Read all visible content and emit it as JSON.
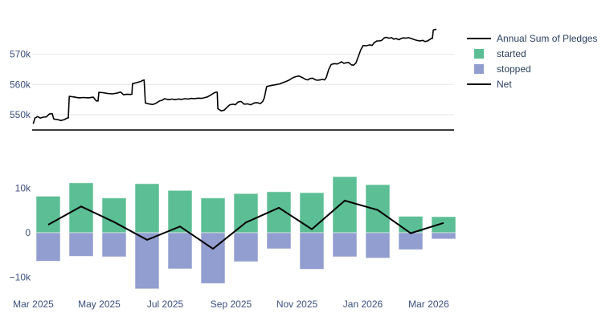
{
  "figure": {
    "background": "#ffffff",
    "grid_color": "#e6e6e6",
    "axisline_color": "#3d3d3d",
    "tick_color": "#3b4f7d",
    "legend_text_color": "#2a3f5f",
    "annual_line_color": "#000000",
    "net_line_color": "#000000",
    "started_color": "#5cbe94",
    "stopped_color": "#929ecf"
  },
  "legend": {
    "items": [
      {
        "label": "Annual Sum of Pledges",
        "symbol": "line",
        "color": "#000000"
      },
      {
        "label": "started",
        "symbol": "square",
        "color": "#5cbe94"
      },
      {
        "label": "stopped",
        "symbol": "square",
        "color": "#929ecf"
      },
      {
        "label": "Net",
        "symbol": "line",
        "color": "#000000"
      }
    ]
  },
  "chart_data": [
    {
      "type": "line",
      "name": "Annual Sum of Pledges",
      "x_unit": "months since Mar 2025 (axis spans Mar 2025 to mid-Mar 2026)",
      "y_unit": "thousands",
      "ylim_k": [
        545,
        579
      ],
      "grid": true,
      "yticks": {
        "labels": [
          "550k",
          "560k",
          "570k"
        ],
        "values_k": [
          550,
          560,
          570
        ]
      },
      "x": [
        0,
        0.05,
        0.13,
        0.21,
        0.3,
        0.4,
        0.48,
        0.57,
        0.62,
        0.74,
        0.84,
        0.94,
        1.03,
        1.06,
        1.09,
        1.23,
        1.38,
        1.52,
        1.67,
        1.82,
        1.91,
        1.96,
        1.99,
        2.11,
        2.26,
        2.4,
        2.55,
        2.65,
        2.74,
        2.84,
        2.94,
        2.99,
        3.01,
        3.13,
        3.26,
        3.33,
        3.36,
        3.4,
        3.5,
        3.62,
        3.72,
        3.82,
        3.91,
        3.98,
        4.11,
        4.21,
        4.3,
        4.4,
        4.5,
        4.6,
        4.7,
        4.79,
        4.89,
        4.99,
        5.09,
        5.18,
        5.28,
        5.38,
        5.48,
        5.55,
        5.58,
        5.6,
        5.7,
        5.79,
        5.89,
        5.96,
        6.06,
        6.13,
        6.21,
        6.3,
        6.4,
        6.5,
        6.6,
        6.7,
        6.79,
        6.89,
        6.96,
        7.01,
        7.08,
        7.18,
        7.28,
        7.38,
        7.48,
        7.57,
        7.67,
        7.77,
        7.87,
        7.96,
        8.06,
        8.16,
        8.26,
        8.33,
        8.4,
        8.48,
        8.55,
        8.62,
        8.7,
        8.77,
        8.84,
        8.89,
        8.96,
        9.04,
        9.13,
        9.23,
        9.3,
        9.35,
        9.43,
        9.5,
        9.57,
        9.65,
        9.72,
        9.79,
        9.87,
        9.94,
        10.01,
        10.11,
        10.21,
        10.28,
        10.35,
        10.43,
        10.5,
        10.57,
        10.65,
        10.72,
        10.79,
        10.87,
        10.94,
        11.01,
        11.09,
        11.16,
        11.23,
        11.31,
        11.38,
        11.45,
        11.52,
        11.6,
        11.67,
        11.74,
        11.82,
        11.89,
        11.96,
        12.04,
        12.08,
        12.11,
        12.14,
        12.2,
        12.22
      ],
      "y_k": [
        547.2,
        548.9,
        549.4,
        548.9,
        549.2,
        549.3,
        550.2,
        550.4,
        548.6,
        548.4,
        548.1,
        548.4,
        548.9,
        549,
        556.1,
        555.9,
        555.6,
        555.7,
        555.6,
        555.8,
        554.6,
        554.5,
        557.4,
        557.3,
        557,
        556.9,
        557.2,
        557.5,
        556.6,
        556.8,
        556.7,
        556.8,
        560.3,
        560.6,
        561,
        561.4,
        561.5,
        553.9,
        553.6,
        553.4,
        553.8,
        554.5,
        554.8,
        555.3,
        555,
        555.2,
        555,
        555.2,
        555.1,
        555.3,
        555.2,
        555.4,
        555.3,
        555.5,
        555.4,
        555.6,
        555.9,
        556.5,
        557.2,
        557.5,
        557.4,
        552,
        551.3,
        551.5,
        552.6,
        553.3,
        553.5,
        553.3,
        554.2,
        554.4,
        553.5,
        553.6,
        553.3,
        553.9,
        554,
        553.7,
        554.4,
        555.6,
        559.3,
        559.6,
        559.8,
        560,
        560.2,
        560.6,
        561,
        561.5,
        562.2,
        562.6,
        562.8,
        562.3,
        561.7,
        561.5,
        562,
        562.1,
        561.6,
        561.4,
        561.5,
        561.7,
        561.5,
        562.3,
        564.9,
        566.6,
        566.9,
        566.8,
        567.2,
        567.5,
        567,
        567.2,
        567.3,
        566.5,
        566.4,
        567.1,
        569.5,
        571.5,
        572.9,
        572.8,
        573.1,
        572.9,
        573.9,
        574.4,
        574.4,
        574.6,
        575.4,
        575.6,
        575.3,
        575.5,
        575,
        575.2,
        574.8,
        575.2,
        575.4,
        575.3,
        575.5,
        575.3,
        575,
        574.7,
        574.5,
        574.4,
        574.6,
        574.2,
        574.4,
        574.9,
        575.3,
        575.2,
        578,
        578.2,
        578.2
      ]
    },
    {
      "type": "bar",
      "barmode": "relative-stacked with overlaid line",
      "grid": false,
      "categories": [
        "Mar 2025",
        "Apr 2025",
        "May 2025",
        "Jun 2025",
        "Jul 2025",
        "Aug 2025",
        "Sep 2025",
        "Oct 2025",
        "Nov 2025",
        "Dec 2025",
        "Jan 2026",
        "Feb 2026",
        "Mar 2026"
      ],
      "series": [
        {
          "name": "started",
          "type": "bar",
          "values": [
            8200,
            11200,
            7800,
            11000,
            9500,
            7800,
            8800,
            9200,
            9000,
            12600,
            10800,
            3700,
            3600
          ]
        },
        {
          "name": "stopped",
          "type": "bar",
          "values": [
            -6400,
            -5300,
            -5400,
            -12600,
            -8100,
            -11400,
            -6500,
            -3600,
            -8200,
            -5400,
            -5700,
            -3800,
            -1400
          ]
        },
        {
          "name": "Net",
          "type": "line",
          "values": [
            1800,
            5900,
            2400,
            -1600,
            1400,
            -3600,
            2300,
            5600,
            800,
            7200,
            5100,
            -100,
            2200
          ]
        }
      ],
      "xticks": [
        "Mar 2025",
        "May 2025",
        "Jul 2025",
        "Sep 2025",
        "Nov 2025",
        "Jan 2026",
        "Mar 2026"
      ],
      "yticks": {
        "labels": [
          "10k",
          "0",
          "−10k"
        ],
        "values": [
          10000,
          0,
          -10000
        ]
      },
      "ylim": [
        -14500,
        14500
      ]
    }
  ]
}
